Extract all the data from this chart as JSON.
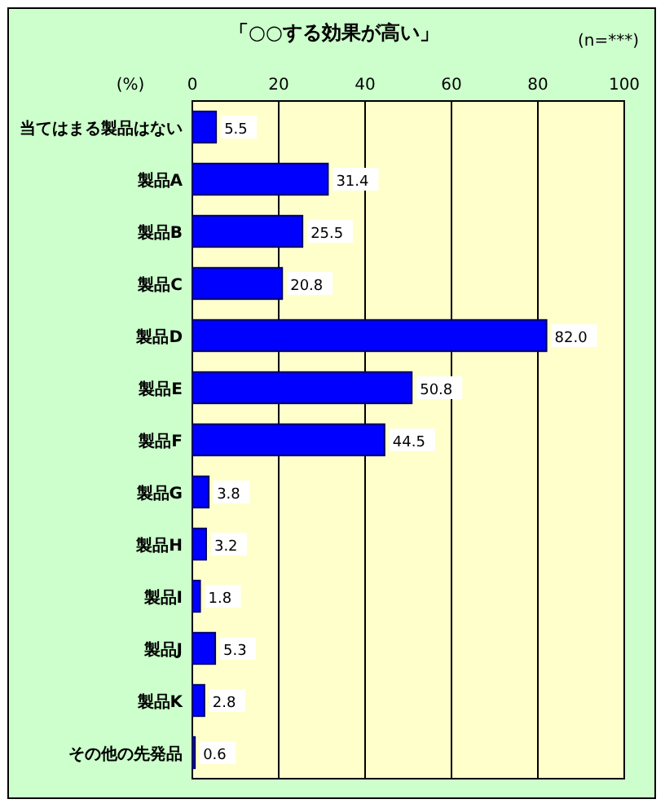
{
  "chart_data": {
    "type": "bar",
    "orientation": "horizontal",
    "title": "「○○する効果が高い」",
    "annotations": [
      "(n=***)"
    ],
    "xlabel": "(%)",
    "categories": [
      "当てはまる製品はない",
      "製品A",
      "製品B",
      "製品C",
      "製品D",
      "製品E",
      "製品F",
      "製品G",
      "製品H",
      "製品I",
      "製品J",
      "製品K",
      "その他の先発品"
    ],
    "values": [
      5.5,
      31.4,
      25.5,
      20.8,
      82.0,
      50.8,
      44.5,
      3.8,
      3.2,
      1.8,
      5.3,
      2.8,
      0.6
    ],
    "value_labels": [
      "5.5",
      "31.4",
      "25.5",
      "20.8",
      "82.0",
      "50.8",
      "44.5",
      "3.8",
      "3.2",
      "1.8",
      "5.3",
      "2.8",
      "0.6"
    ],
    "color": "#0000ff",
    "xlim": [
      0,
      100
    ],
    "xticks": [
      0,
      20,
      40,
      60,
      80,
      100
    ],
    "grid": "x"
  }
}
